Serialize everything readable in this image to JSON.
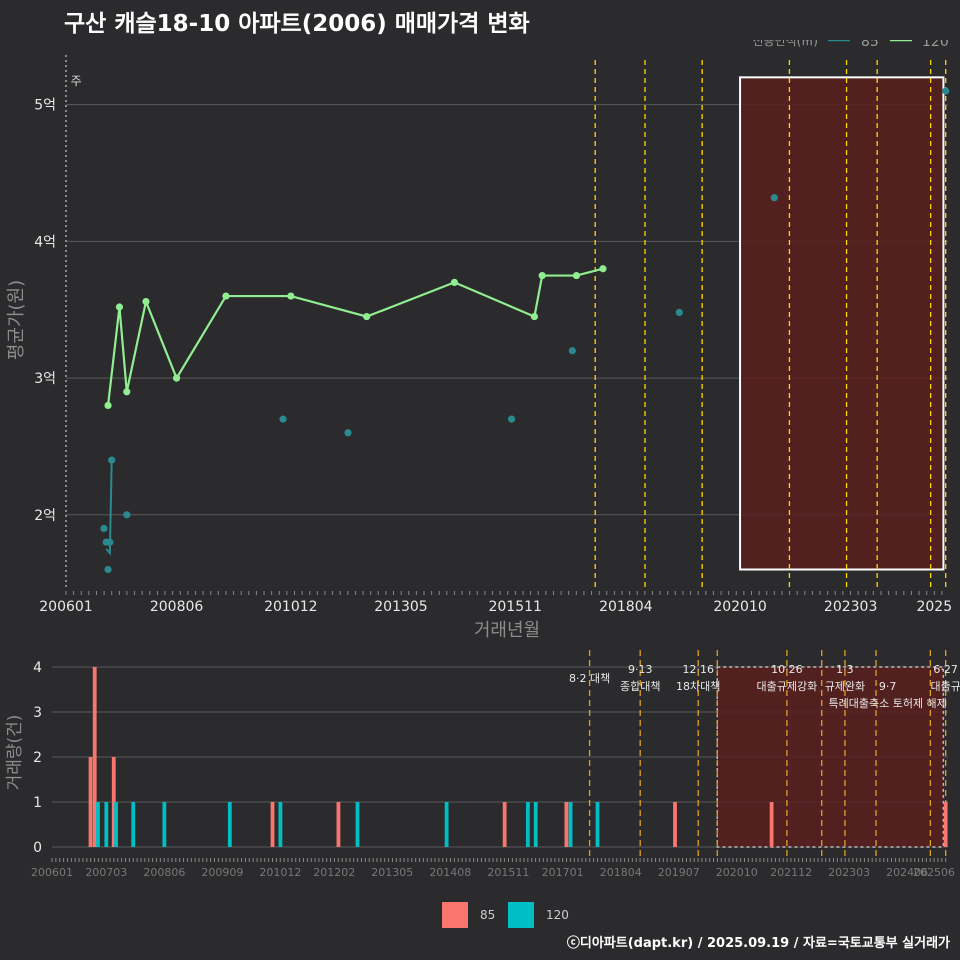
{
  "title": "구산 캐슬18-10 아파트(2006) 매매가격 변화",
  "footer": "ⓒ디아파트(dapt.kr) / 2025.09.19 / 자료=국토교통부 실거래가",
  "colors": {
    "background": "#2b2b2d",
    "grid": "#5a5a5a",
    "s85_line": "#2a8a8f",
    "s120_line": "#90ee90",
    "bar85": "#f8766d",
    "bar120": "#00bfc4",
    "policy": "#ffd700",
    "shade": "#5a1f1f"
  },
  "chart_data": [
    {
      "type": "line",
      "title": "구산 캐슬18-10 아파트(2006) 매매가격 변화",
      "xlabel": "거래년월",
      "ylabel": "평균가(원)",
      "ylim": [
        1.45,
        5.4
      ],
      "xlim": [
        2006.0,
        2025.3
      ],
      "y_ticks": [
        2,
        3,
        4,
        5
      ],
      "y_tick_labels": [
        "2억",
        "3억",
        "4억",
        "5억"
      ],
      "x_ticks": [
        2006.0,
        2008.42,
        2010.92,
        2013.33,
        2015.83,
        2018.25,
        2020.75,
        2023.17,
        2025.0
      ],
      "x_tick_labels": [
        "200601",
        "200806",
        "201012",
        "201305",
        "201511",
        "201804",
        "202010",
        "202303",
        "2025"
      ],
      "legend_title": "전용면적(㎡)",
      "legend_position": "top-right",
      "series": [
        {
          "name": "85",
          "color": "#2a8a8f",
          "points": [
            [
              2006.83,
              1.9
            ],
            [
              2006.88,
              1.8
            ],
            [
              2006.92,
              1.6
            ],
            [
              2006.96,
              1.8
            ],
            [
              2007.0,
              2.4
            ],
            [
              2007.33,
              2.0
            ],
            [
              2010.75,
              2.7
            ],
            [
              2012.17,
              2.6
            ],
            [
              2015.75,
              2.7
            ],
            [
              2017.08,
              3.2
            ],
            [
              2019.42,
              3.48
            ],
            [
              2021.5,
              4.32
            ],
            [
              2025.25,
              5.1
            ]
          ],
          "line_segments": [
            [
              [
                2006.88,
                1.75
              ],
              [
                2006.96,
                1.72
              ],
              [
                2007.0,
                2.4
              ]
            ]
          ]
        },
        {
          "name": "120",
          "color": "#90ee90",
          "points": [
            [
              2006.92,
              2.8
            ],
            [
              2007.17,
              3.52
            ],
            [
              2007.33,
              2.9
            ],
            [
              2007.75,
              3.56
            ],
            [
              2008.42,
              3.0
            ],
            [
              2009.5,
              3.6
            ],
            [
              2010.92,
              3.6
            ],
            [
              2012.58,
              3.45
            ],
            [
              2014.5,
              3.7
            ],
            [
              2016.25,
              3.45
            ],
            [
              2016.42,
              3.75
            ],
            [
              2017.17,
              3.75
            ],
            [
              2017.75,
              3.8
            ]
          ]
        }
      ],
      "annotations": [
        {
          "text": "주",
          "x": 2006.1,
          "y": 5.1
        }
      ],
      "policy_lines_x": [
        2017.58,
        2018.67,
        2019.92,
        2021.83,
        2023.08,
        2023.75,
        2024.92,
        2025.25
      ],
      "highlight_range": {
        "x": [
          2020.75,
          2025.2
        ],
        "y": [
          1.6,
          5.2
        ]
      }
    },
    {
      "type": "bar",
      "xlabel": "",
      "ylabel": "거래량(건)",
      "ylim": [
        0,
        4.2
      ],
      "xlim": [
        2006.0,
        2025.3
      ],
      "y_ticks": [
        0,
        1,
        2,
        3,
        4
      ],
      "y_tick_labels": [
        "0",
        "1",
        "2",
        "3",
        "4"
      ],
      "x_ticks": [
        2006.0,
        2007.17,
        2008.42,
        2009.67,
        2010.92,
        2012.08,
        2013.33,
        2014.58,
        2015.83,
        2017.0,
        2018.25,
        2019.5,
        2020.75,
        2021.92,
        2023.17,
        2024.42,
        2025.0
      ],
      "x_tick_labels": [
        "200601",
        "200703",
        "200806",
        "200909",
        "201012",
        "201202",
        "201305",
        "201408",
        "201511",
        "201701",
        "201804",
        "201907",
        "202010",
        "202112",
        "202303",
        "202406",
        "202506"
      ],
      "legend_position": "bottom",
      "series": [
        {
          "name": "85",
          "color": "#f8766d",
          "bars": [
            [
              2006.83,
              2
            ],
            [
              2006.92,
              4
            ],
            [
              2007.33,
              2
            ],
            [
              2010.75,
              1
            ],
            [
              2012.17,
              1
            ],
            [
              2015.75,
              1
            ],
            [
              2017.08,
              1
            ],
            [
              2019.42,
              1
            ],
            [
              2021.5,
              1
            ],
            [
              2025.25,
              1
            ]
          ]
        },
        {
          "name": "120",
          "color": "#00bfc4",
          "bars": [
            [
              2006.99,
              1
            ],
            [
              2007.17,
              1
            ],
            [
              2007.38,
              1
            ],
            [
              2007.75,
              1
            ],
            [
              2008.42,
              1
            ],
            [
              2009.83,
              1
            ],
            [
              2010.92,
              1
            ],
            [
              2012.58,
              1
            ],
            [
              2014.5,
              1
            ],
            [
              2016.25,
              1
            ],
            [
              2016.42,
              1
            ],
            [
              2017.17,
              1
            ],
            [
              2017.75,
              1
            ]
          ]
        }
      ],
      "policy_lines_x": [
        2017.58,
        2018.67,
        2019.92,
        2020.33,
        2021.83,
        2022.58,
        2023.08,
        2023.75,
        2024.92,
        2025.25
      ],
      "highlight_range": {
        "x": [
          2020.33,
          2025.2
        ],
        "y": [
          0,
          4
        ]
      },
      "policy_labels": [
        {
          "lines": [
            "8·2 대책"
          ],
          "x": 2017.58,
          "yline": 0
        },
        {
          "lines": [
            "9·13",
            "종합대책"
          ],
          "x": 2018.67,
          "yline": 0
        },
        {
          "lines": [
            "12·16",
            "18차대책"
          ],
          "x": 2019.92,
          "yline": 0
        },
        {
          "lines": [
            "10·26",
            "대출규제강화"
          ],
          "x": 2021.83,
          "yline": 0
        },
        {
          "lines": [
            "1·3",
            "규제완화"
          ],
          "x": 2023.08,
          "yline": 0
        },
        {
          "lines": [
            "9·7",
            "특례대출축소 토허제 해제"
          ],
          "x": 2024.0,
          "yline": 1
        },
        {
          "lines": [
            "6·27",
            "대출규"
          ],
          "x": 2025.25,
          "yline": 0
        }
      ]
    }
  ]
}
